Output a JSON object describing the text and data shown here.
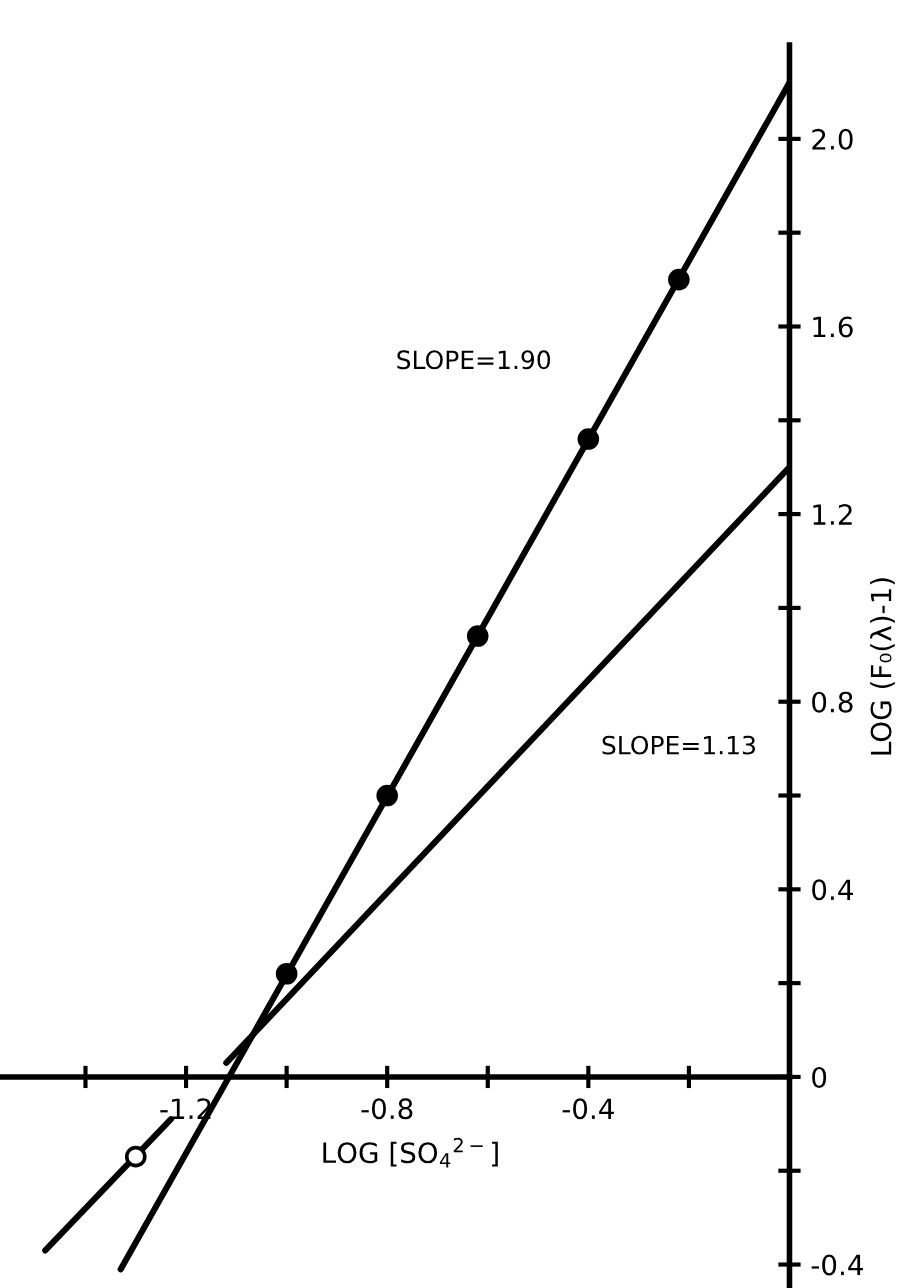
{
  "chart_data": {
    "type": "line",
    "xlabel": "LOG [SO$_{4}$$^{2−}$]",
    "ylabel": "LOG (F₀(λ)-1)",
    "xlim": [
      -1.57,
      0
    ],
    "ylim": [
      -0.45,
      2.2
    ],
    "xticks": [
      {
        "value": -1.4,
        "label": null
      },
      -1.2,
      {
        "value": -1.0,
        "label": null
      },
      -0.8,
      {
        "value": -0.6,
        "label": null
      },
      -0.4,
      {
        "value": -0.2,
        "label": null
      }
    ],
    "yticks": [
      -0.4,
      {
        "value": -0.2,
        "label": null
      },
      0,
      {
        "value": 0.2,
        "label": null
      },
      0.4,
      {
        "value": 0.6,
        "label": null
      },
      0.8,
      {
        "value": 1.0,
        "label": null
      },
      1.2,
      {
        "value": 1.4,
        "label": null
      },
      1.6,
      {
        "value": 1.8,
        "label": null
      },
      {
        "value": 2,
        "label": "2.0"
      }
    ],
    "grid": false,
    "legend": false,
    "line_style": "solid",
    "series": [
      {
        "color": "#000000",
        "x": [
          -1.33,
          0
        ],
        "values": [
          -0.41,
          2.12
        ]
      },
      {
        "color": "#000000",
        "x": [
          -1.48,
          -1.23,
          -1.17,
          -1.12,
          0
        ],
        "values": [
          -0.37,
          -0.09,
          null,
          0.03,
          1.3
        ]
      },
      {
        "type": "scatter",
        "marker": "circle",
        "color": "#000000",
        "x": [
          -1.0,
          -0.8,
          -0.62,
          -0.4,
          -0.22
        ],
        "values": [
          0.22,
          0.6,
          0.94,
          1.36,
          1.7
        ]
      },
      {
        "type": "scatter",
        "marker": "circle",
        "color": "#ffffff",
        "x": [
          -1.3
        ],
        "values": [
          -0.17
        ]
      }
    ],
    "annotations": [
      "SLOPE=1.90",
      "SLOPE=1.13"
    ]
  }
}
